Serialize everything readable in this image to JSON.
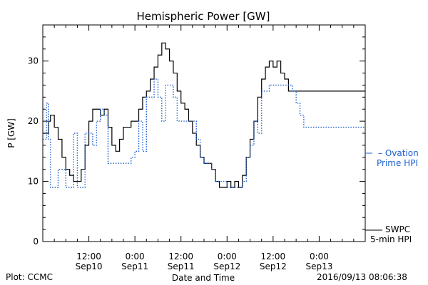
{
  "chart_data": {
    "type": "line",
    "title": "Hemispheric Power [GW]",
    "xlabel": "Date and Time",
    "ylabel": "P [GW]",
    "ylim": [
      0,
      36
    ],
    "xlim_hours": [
      0,
      84
    ],
    "yticks": [
      0,
      10,
      20,
      30
    ],
    "xticks": [
      {
        "hour": 12,
        "time": "12:00",
        "date": "Sep10"
      },
      {
        "hour": 24,
        "time": "0:00",
        "date": "Sep11"
      },
      {
        "hour": 36,
        "time": "12:00",
        "date": "Sep11"
      },
      {
        "hour": 48,
        "time": "0:00",
        "date": "Sep12"
      },
      {
        "hour": 60,
        "time": "12:00",
        "date": "Sep12"
      },
      {
        "hour": 72,
        "time": "0:00",
        "date": "Sep13"
      }
    ],
    "series": [
      {
        "name": "SWPC 5-min HPI",
        "legend_lines": [
          "SWPC",
          "5-min HPI"
        ],
        "color": "#000000",
        "style": "solid",
        "x": [
          0,
          1,
          1.5,
          2,
          3,
          4,
          5,
          6,
          7,
          8,
          9,
          10,
          11,
          12,
          13,
          14,
          15,
          16,
          17,
          18,
          19,
          20,
          21,
          22,
          23,
          24,
          25,
          26,
          27,
          28,
          29,
          30,
          31,
          32,
          33,
          34,
          35,
          36,
          37,
          38,
          39,
          40,
          41,
          42,
          43,
          44,
          45,
          46,
          47,
          48,
          49,
          50,
          51,
          52,
          53,
          54,
          55,
          56,
          57,
          58,
          59,
          60,
          61,
          62,
          63,
          64,
          65,
          66,
          67,
          68,
          69,
          70,
          71,
          72,
          73,
          74,
          75,
          76,
          77,
          78,
          79,
          80,
          81,
          82,
          83,
          84
        ],
        "y": [
          18,
          18,
          20,
          21,
          19,
          17,
          14,
          12,
          11,
          10,
          10,
          12,
          16,
          20,
          22,
          22,
          21,
          22,
          19,
          16,
          15,
          17,
          19,
          19,
          20,
          20,
          22,
          24,
          25,
          27,
          29,
          31,
          33,
          32,
          30,
          28,
          25,
          23,
          22,
          20,
          18,
          16,
          14,
          13,
          13,
          12,
          10,
          9,
          9,
          10,
          9,
          10,
          9,
          11,
          14,
          17,
          20,
          24,
          27,
          29,
          30,
          29,
          30,
          28,
          27,
          25,
          25,
          25,
          25,
          25,
          25,
          25,
          25,
          25,
          25,
          25,
          25,
          25,
          25,
          25,
          25,
          25,
          25,
          25,
          25,
          25
        ]
      },
      {
        "name": "Ovation Prime HPI",
        "legend_lines": [
          "– Ovation",
          "Prime HPI"
        ],
        "color": "#1f5fcf",
        "style": "dotted",
        "x": [
          0,
          1,
          1.5,
          2,
          3,
          4,
          5,
          6,
          7,
          8,
          9,
          10,
          11,
          12,
          13,
          14,
          15,
          16,
          17,
          18,
          19,
          20,
          21,
          22,
          23,
          24,
          25,
          26,
          27,
          28,
          29,
          30,
          31,
          32,
          33,
          34,
          35,
          36,
          37,
          38,
          39,
          40,
          41,
          42,
          43,
          44,
          45,
          46,
          47,
          48,
          49,
          50,
          51,
          52,
          53,
          54,
          55,
          56,
          57,
          58,
          59,
          60,
          61,
          62,
          63,
          64,
          65,
          66,
          67,
          68,
          69,
          70,
          71,
          72,
          73,
          74,
          75,
          76,
          77,
          78,
          79,
          80,
          81,
          82,
          83,
          84
        ],
        "y": [
          17,
          23,
          17,
          9,
          9,
          12,
          12,
          9,
          9,
          18,
          9,
          9,
          18,
          18,
          16,
          20,
          22,
          21,
          13,
          13,
          13,
          13,
          13,
          13,
          14,
          15,
          20,
          15,
          24,
          24,
          27,
          24,
          20,
          26,
          26,
          24,
          20,
          20,
          20,
          20,
          20,
          17,
          14,
          13,
          13,
          12,
          10,
          10,
          10,
          9,
          9,
          9,
          9,
          10,
          14,
          16,
          20,
          18,
          25,
          25,
          26,
          26,
          26,
          26,
          26,
          26,
          25,
          23,
          21,
          19,
          19,
          19,
          19,
          19,
          19,
          19,
          19,
          19,
          19,
          19,
          19,
          19,
          19,
          19,
          19,
          19
        ]
      }
    ]
  },
  "footer": {
    "left": "Plot: CCMC",
    "timestamp": "2016/09/13 08:06:38"
  }
}
